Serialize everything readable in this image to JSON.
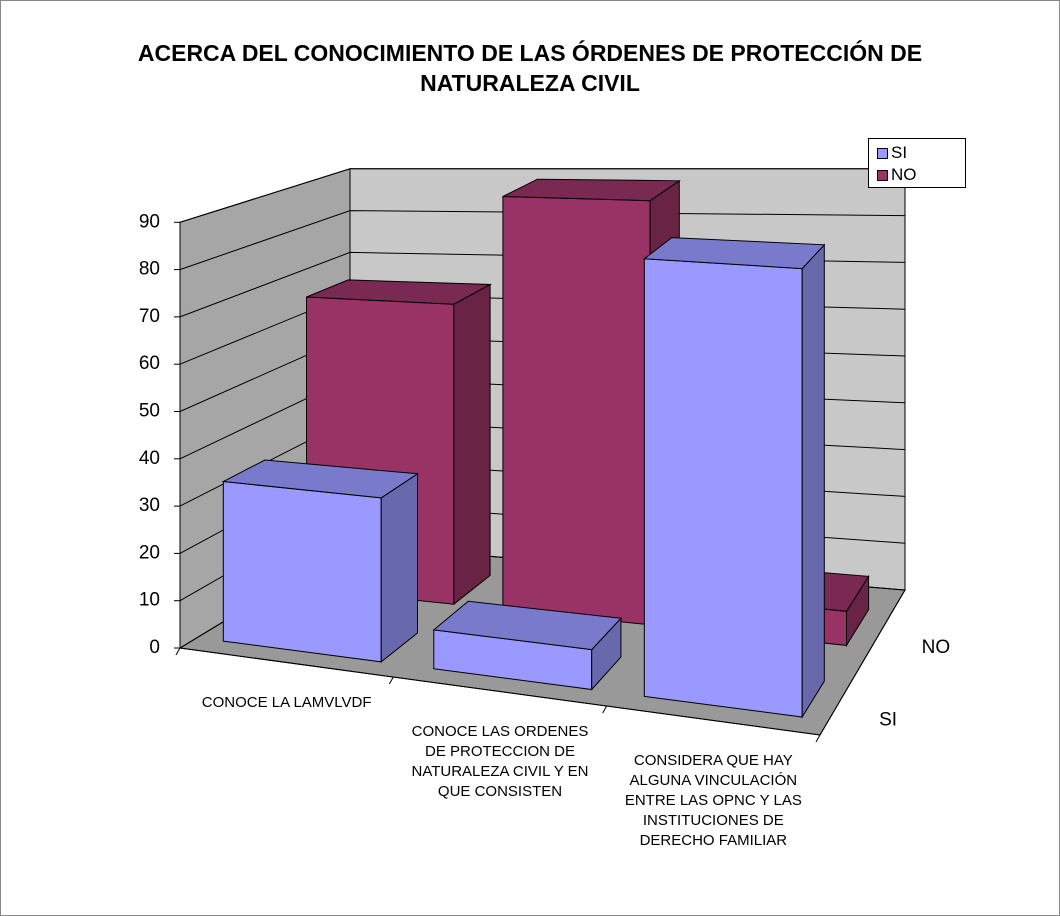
{
  "chart_data": {
    "type": "bar3d",
    "title": "ACERCA DEL CONOCIMIENTO DE LAS ÓRDENES DE PROTECCIÓN DE NATURALEZA CIVIL",
    "categories": [
      "CONOCE LA LAMVLVDF",
      "CONOCE LAS ORDENES DE PROTECCION DE NATURALEZA CIVIL Y EN QUE CONSISTEN",
      "CONSIDERA QUE HAY ALGUNA VINCULACIÓN ENTRE LAS OPNC Y LAS INSTITUCIONES DE DERECHO FAMILIAR"
    ],
    "series": [
      {
        "name": "SI",
        "color": "#9999ff",
        "values": [
          34,
          8,
          87
        ]
      },
      {
        "name": "NO",
        "color": "#993366",
        "values": [
          66,
          90,
          7
        ]
      }
    ],
    "ylim": [
      0,
      90
    ],
    "yticks": [
      0,
      10,
      20,
      30,
      40,
      50,
      60,
      70,
      80,
      90
    ],
    "grid": true,
    "legend": "top-right"
  }
}
